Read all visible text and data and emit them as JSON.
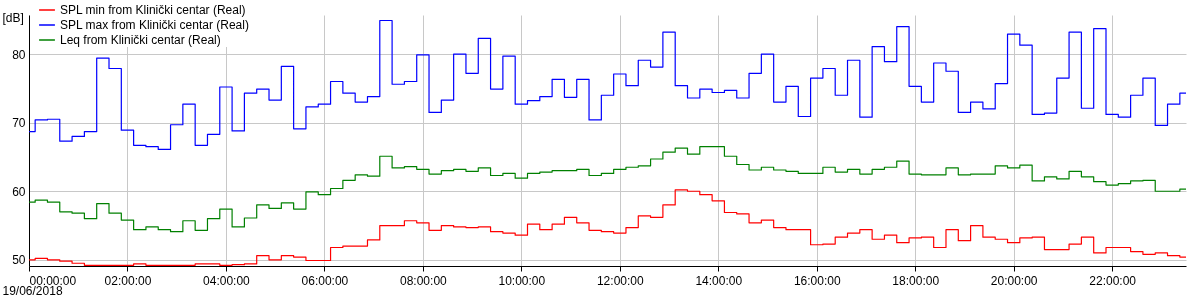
{
  "chart_data": {
    "type": "step",
    "ylabel": "[dB]",
    "annotations": [
      "19/06/2018"
    ],
    "x": [
      0,
      0.25,
      0.5,
      0.75,
      1,
      1.25,
      1.5,
      1.75,
      2,
      2.25,
      2.5,
      2.75,
      3,
      3.25,
      3.5,
      3.75,
      4,
      4.25,
      4.5,
      4.75,
      5,
      5.25,
      5.5,
      5.75,
      6,
      6.25,
      6.5,
      6.75,
      7,
      7.25,
      7.5,
      7.75,
      8,
      8.25,
      8.5,
      8.75,
      9,
      9.25,
      9.5,
      9.75,
      10,
      10.25,
      10.5,
      10.75,
      11,
      11.25,
      11.5,
      11.75,
      12,
      12.25,
      12.5,
      12.75,
      13,
      13.25,
      13.5,
      13.75,
      14,
      14.25,
      14.5,
      14.75,
      15,
      15.25,
      15.5,
      15.75,
      16,
      16.25,
      16.5,
      16.75,
      17,
      17.25,
      17.5,
      17.75,
      18,
      18.25,
      18.5,
      18.75,
      19,
      19.25,
      19.5,
      19.75,
      20,
      20.25,
      20.5,
      20.75,
      21,
      21.25,
      21.5,
      21.75,
      22,
      22.25,
      22.5,
      22.75,
      23,
      23.25,
      23.5
    ],
    "series": [
      {
        "name": "SPL min from Klinički centar (Real)",
        "color": "#ff0000",
        "values": [
          50.0,
          50.2,
          50.0,
          49.8,
          49.5,
          49.2,
          49.2,
          49.2,
          49.2,
          49.4,
          49.2,
          49.2,
          49.2,
          49.2,
          49.4,
          49.4,
          49.2,
          49.3,
          49.4,
          50.6,
          50.0,
          50.6,
          50.4,
          49.9,
          49.9,
          51.8,
          52.0,
          52.0,
          52.9,
          55.0,
          55.0,
          55.7,
          55.4,
          54.3,
          55.0,
          54.8,
          54.7,
          54.8,
          54.1,
          53.9,
          53.6,
          55.2,
          54.4,
          55.2,
          56.2,
          55.4,
          54.3,
          54.1,
          53.9,
          54.7,
          56.4,
          56.2,
          58.0,
          60.2,
          60.0,
          59.5,
          58.6,
          56.9,
          56.7,
          55.4,
          55.8,
          54.7,
          54.4,
          54.4,
          52.2,
          52.3,
          53.3,
          53.9,
          54.4,
          53.0,
          53.6,
          52.5,
          53.2,
          53.3,
          51.8,
          54.4,
          52.8,
          55.0,
          53.3,
          53.0,
          52.5,
          53.2,
          53.3,
          51.5,
          51.5,
          52.3,
          53.3,
          51.0,
          51.8,
          51.8,
          51.2,
          50.8,
          51.0,
          50.6,
          50.4
        ]
      },
      {
        "name": "SPL max from Klinički centar (Real)",
        "color": "#0000ff",
        "values": [
          68.7,
          70.4,
          70.5,
          67.3,
          68.0,
          68.7,
          79.4,
          77.9,
          68.9,
          66.7,
          66.5,
          66.1,
          69.7,
          72.7,
          66.7,
          68.3,
          75.2,
          68.8,
          74.3,
          74.9,
          73.3,
          78.2,
          69.1,
          72.3,
          72.7,
          76.0,
          74.3,
          73.0,
          73.8,
          84.9,
          75.6,
          76.0,
          79.9,
          71.5,
          73.3,
          80.0,
          77.2,
          82.3,
          74.9,
          79.7,
          72.7,
          73.2,
          73.8,
          76.3,
          73.7,
          76.3,
          70.4,
          74.0,
          77.1,
          75.4,
          79.1,
          78.1,
          83.2,
          75.4,
          73.6,
          74.9,
          74.4,
          74.7,
          73.6,
          77.2,
          80.0,
          73.0,
          75.3,
          70.9,
          76.5,
          77.9,
          74.0,
          79.1,
          70.8,
          81.1,
          78.9,
          84.0,
          75.3,
          73.0,
          78.7,
          77.5,
          71.5,
          73.0,
          72.0,
          75.7,
          82.9,
          81.3,
          71.2,
          71.4,
          76.5,
          83.2,
          72.1,
          83.7,
          71.2,
          70.8,
          74.0,
          76.5,
          69.6,
          72.7,
          74.3
        ]
      },
      {
        "name": "Leq from Klinički centar (Real)",
        "color": "#008000",
        "values": [
          58.4,
          58.7,
          58.4,
          57.0,
          56.8,
          56.0,
          58.2,
          56.8,
          55.8,
          54.4,
          54.8,
          54.4,
          54.1,
          55.7,
          54.3,
          56.0,
          57.4,
          54.8,
          56.1,
          58.0,
          57.5,
          58.3,
          57.4,
          59.9,
          59.5,
          60.4,
          61.6,
          62.4,
          62.2,
          65.1,
          63.4,
          63.6,
          63.2,
          62.5,
          63.0,
          63.2,
          62.9,
          63.4,
          62.3,
          62.6,
          61.9,
          62.6,
          62.8,
          63.0,
          63.0,
          63.2,
          62.3,
          62.6,
          63.2,
          63.5,
          63.7,
          64.7,
          65.7,
          66.3,
          65.4,
          66.5,
          66.5,
          65.1,
          63.9,
          63.1,
          63.5,
          63.1,
          62.9,
          62.6,
          62.6,
          63.5,
          62.8,
          63.2,
          62.5,
          63.2,
          63.5,
          64.4,
          62.5,
          62.4,
          62.4,
          63.4,
          62.4,
          62.5,
          62.5,
          63.7,
          63.4,
          63.8,
          61.5,
          62.1,
          61.8,
          62.9,
          62.1,
          61.4,
          60.9,
          61.1,
          61.5,
          61.6,
          60.0,
          60.0,
          60.3
        ]
      }
    ],
    "xlim": [
      0,
      23.5
    ],
    "ylim": [
      49.1,
      85.7
    ],
    "xticks": [
      {
        "value": 0,
        "label": "00:00:00"
      },
      {
        "value": 2,
        "label": "02:00:00"
      },
      {
        "value": 4,
        "label": "04:00:00"
      },
      {
        "value": 6,
        "label": "06:00:00"
      },
      {
        "value": 8,
        "label": "08:00:00"
      },
      {
        "value": 10,
        "label": "10:00:00"
      },
      {
        "value": 12,
        "label": "12:00:00"
      },
      {
        "value": 14,
        "label": "14:00:00"
      },
      {
        "value": 16,
        "label": "16:00:00"
      },
      {
        "value": 18,
        "label": "18:00:00"
      },
      {
        "value": 20,
        "label": "20:00:00"
      },
      {
        "value": 22,
        "label": "22:00:00"
      }
    ],
    "yticks": [
      50,
      60,
      70,
      80
    ],
    "grid": true,
    "legend": "top left"
  }
}
